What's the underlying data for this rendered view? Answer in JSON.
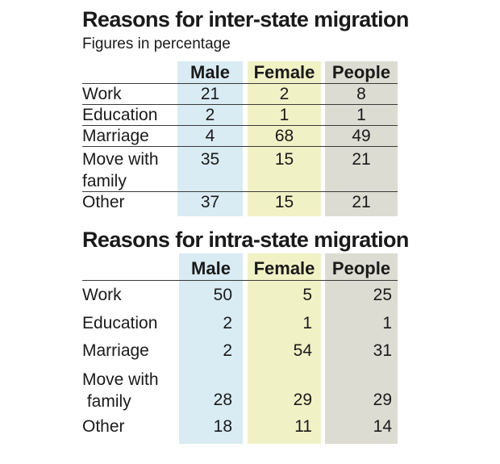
{
  "chart_data": [
    {
      "type": "table",
      "title": "Reasons for inter-state migration",
      "subtitle": "Figures in percentage",
      "columns": [
        "Male",
        "Female",
        "People"
      ],
      "rows": [
        {
          "label": "Work",
          "values": [
            21,
            2,
            8
          ]
        },
        {
          "label": "Education",
          "values": [
            2,
            1,
            1
          ]
        },
        {
          "label": "Marriage",
          "values": [
            4,
            68,
            49
          ]
        },
        {
          "label": "Move with family",
          "label_lines": [
            "Move with",
            "family"
          ],
          "values": [
            35,
            15,
            21
          ]
        },
        {
          "label": "Other",
          "values": [
            37,
            15,
            21
          ]
        }
      ]
    },
    {
      "type": "table",
      "title": "Reasons for intra-state migration",
      "columns": [
        "Male",
        "Female",
        "People"
      ],
      "rows": [
        {
          "label": "Work",
          "values": [
            50,
            5,
            25
          ]
        },
        {
          "label": "Education",
          "values": [
            2,
            1,
            1
          ]
        },
        {
          "label": "Marriage",
          "values": [
            2,
            54,
            31
          ]
        },
        {
          "label": "Move with family",
          "label_lines": [
            "Move with",
            " family"
          ],
          "values": [
            28,
            29,
            29
          ]
        },
        {
          "label": "Other",
          "values": [
            18,
            11,
            14
          ]
        }
      ]
    }
  ],
  "colors": {
    "male_column": "#d9ebf3",
    "female_column": "#f1f1c6",
    "people_column": "#dcdcd3",
    "text": "#1a1a1a",
    "rule": "#3a3a3a"
  }
}
